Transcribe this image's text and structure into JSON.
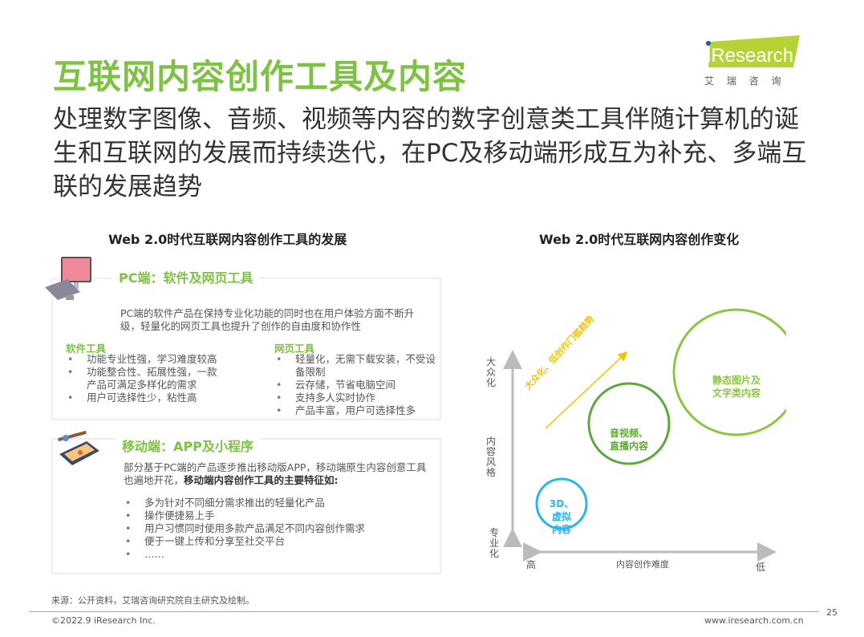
{
  "title": "互联网内容创作工具及内容",
  "subtitle": "处理数字图像、音频、视频等内容的数字创意类工具伴随计算机的诞生和互联网的发展而持续迭代，在PC及移动端形成互为补充、多端互联的发展趋势",
  "logo": {
    "brand": "iResearch",
    "cn": "艾 瑞 咨 询",
    "color": "#b5d334"
  },
  "left": {
    "heading": "Web 2.0时代互联网内容创作工具的发展",
    "pc": {
      "title": "PC端：软件及网页工具",
      "desc": "PC端的软件产品在保持专业化功能的同时也在用户体验方面不断升级，轻量化的网页工具也提升了创作的自由度和协作性",
      "software": {
        "label": "软件工具",
        "items": [
          "功能专业性强，学习难度较高",
          "功能整合性、拓展性强，一款产品可满足多样化的需求",
          "用户可选择性少，粘性高"
        ]
      },
      "web": {
        "label": "网页工具",
        "items": [
          "轻量化，无需下载安装，不受设备限制",
          "云存储，节省电脑空间",
          "支持多人实时协作",
          "产品丰富，用户可选择性多"
        ]
      }
    },
    "mobile": {
      "title": "移动端：APP及小程序",
      "desc": "部分基于PC端的产品逐步推出移动版APP，移动端原生内容创意工具也遍地开花，",
      "desc_bold": "移动端内容创作工具的主要特征如:",
      "items": [
        "多为针对不同细分需求推出的轻量化产品",
        "操作便捷易上手",
        "用户习惯同时使用多款产品满足不同内容创作需求",
        "便于一键上传和分享至社交平台",
        "……"
      ]
    }
  },
  "right": {
    "heading": "Web 2.0时代互联网内容创作变化",
    "y_top": "大众化",
    "y_mid": "内容风格",
    "y_bottom": "专业化",
    "x_left": "高",
    "x_mid": "内容创作难度",
    "x_right": "低",
    "trend": "大众化、低创作门槛趋势",
    "bubbles": [
      {
        "label1": "3D、",
        "label2": "虚拟",
        "label3": "内容",
        "color": "#29b6e8"
      },
      {
        "label1": "音视频、",
        "label2": "直播内容",
        "color": "#5ea83a"
      },
      {
        "label1": "静态图片及",
        "label2": "文字类内容",
        "color": "#8cc63f"
      }
    ],
    "trend_color": "#f5c400"
  },
  "source": "来源：公开资料，艾瑞咨询研究院自主研究及绘制。",
  "footer": {
    "copyright": "©2022.9 iResearch Inc.",
    "url": "www.iresearch.com.cn",
    "page": "25"
  }
}
